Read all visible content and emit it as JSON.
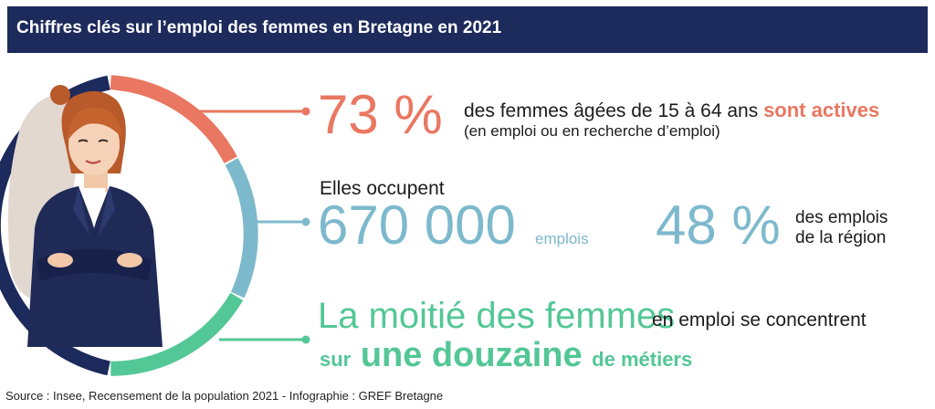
{
  "header": {
    "title": "Chiffres clés sur l’emploi des femmes en Bretagne en 2021"
  },
  "stat1": {
    "value": "73 %",
    "text_before": "des femmes âgées de 15 à 64 ans",
    "highlight": "sont actives",
    "subtext": "(en emploi ou en recherche d’emploi)"
  },
  "stat2": {
    "intro": "Elles occupent",
    "value": "670 000",
    "unit": "emplois",
    "percent": "48 %",
    "percent_text_line1": "des emplois",
    "percent_text_line2": "de la région"
  },
  "stat3": {
    "headline": "La moitié des femmes",
    "text1": "en emploi se concentrent",
    "word_sur": "sur",
    "highlight": "une douzaine",
    "text2": "de métiers"
  },
  "source": "Source : Insee, Recensement de la population 2021 - Infographie : GREF Bretagne",
  "colors": {
    "navy": "#1d2a5c",
    "coral": "#ea7761",
    "blue": "#7db9cd",
    "green": "#53c796"
  }
}
